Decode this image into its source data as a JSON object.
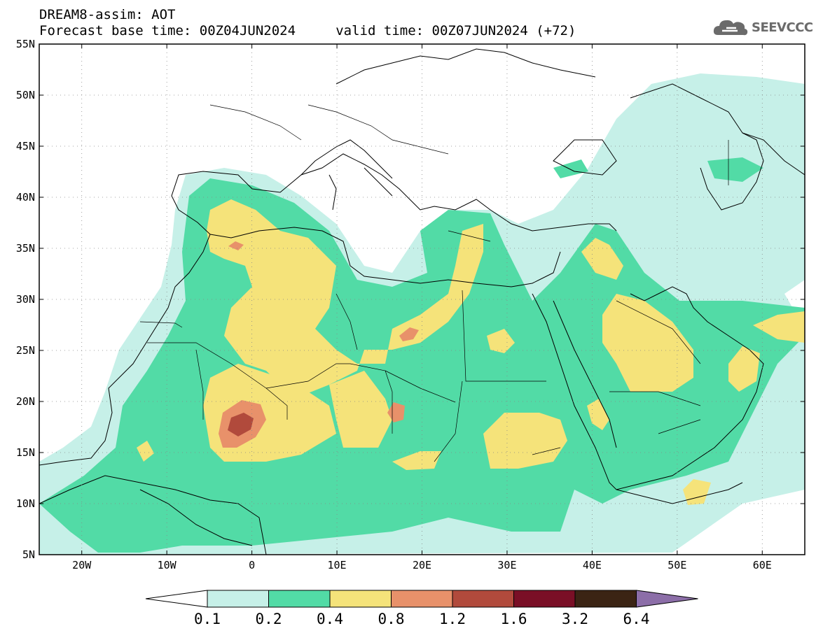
{
  "title": {
    "line1": "DREAM8-assim: AOT",
    "line2": "Forecast base time: 00Z04JUN2024     valid time: 00Z07JUN2024 (+72)"
  },
  "logo": {
    "text": "SEEVCCC",
    "icon": "cloud-icon",
    "color": "#6b6b6b"
  },
  "map": {
    "lon_range": [
      -25,
      65
    ],
    "lat_range": [
      5,
      55
    ],
    "lat_ticks": [
      {
        "value": 55,
        "label": "55N"
      },
      {
        "value": 50,
        "label": "50N"
      },
      {
        "value": 45,
        "label": "45N"
      },
      {
        "value": 40,
        "label": "40N"
      },
      {
        "value": 35,
        "label": "35N"
      },
      {
        "value": 30,
        "label": "30N"
      },
      {
        "value": 25,
        "label": "25N"
      },
      {
        "value": 20,
        "label": "20N"
      },
      {
        "value": 15,
        "label": "15N"
      },
      {
        "value": 10,
        "label": "10N"
      },
      {
        "value": 5,
        "label": "5N"
      }
    ],
    "lon_ticks": [
      {
        "value": -20,
        "label": "20W"
      },
      {
        "value": -10,
        "label": "10W"
      },
      {
        "value": 0,
        "label": "0"
      },
      {
        "value": 10,
        "label": "10E"
      },
      {
        "value": 20,
        "label": "20E"
      },
      {
        "value": 30,
        "label": "30E"
      },
      {
        "value": 40,
        "label": "40E"
      },
      {
        "value": 50,
        "label": "50E"
      },
      {
        "value": 60,
        "label": "60E"
      }
    ],
    "grid": "dotted"
  },
  "colorbar": {
    "labels": [
      "0.1",
      "0.2",
      "0.4",
      "0.8",
      "1.2",
      "1.6",
      "3.2",
      "6.4"
    ],
    "under_color": "#ffffff",
    "over_color": "#8c6ea8",
    "colors": [
      "#c6f0e8",
      "#52dba6",
      "#f5e37a",
      "#e8916a",
      "#b14a3c",
      "#7a0f26",
      "#3b2414"
    ]
  }
}
